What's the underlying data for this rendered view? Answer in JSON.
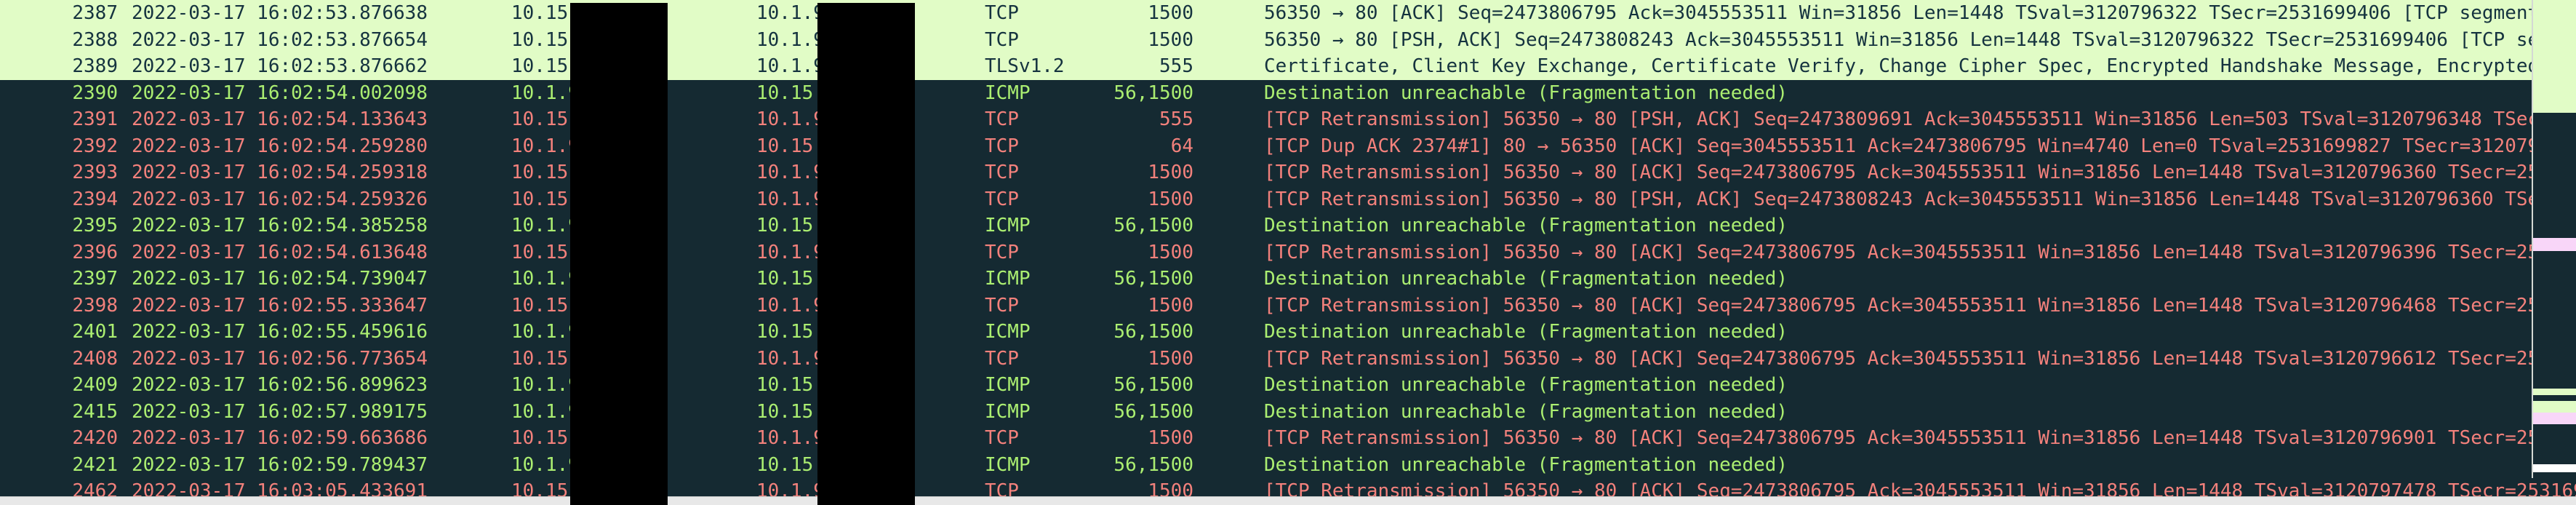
{
  "app": "wireshark-packet-list",
  "columns": [
    "No.",
    "Time",
    "Source",
    "Destination",
    "Protocol",
    "Length",
    "Info"
  ],
  "colors": {
    "row_http_bg": "#e1fcc6",
    "row_http_text": "#15333f",
    "dark_bg": "#152a32",
    "icmp_text": "#abee71",
    "bad_tcp_text": "#f3817c",
    "minimap_pink": "#f8d6f8",
    "minimap_white": "#ffffff",
    "hscrollbar_bg": "#e8e8e8",
    "redaction": "#000000"
  },
  "rows": [
    {
      "no": "2387",
      "time": "2022-03-17 16:02:53.876638",
      "source": "10.15",
      "destination": "10.1.9",
      "protocol": "TCP",
      "length": "1500",
      "info": "56350 → 80 [ACK] Seq=2473806795 Ack=3045553511 Win=31856 Len=1448 TSval=3120796322 TSecr=2531699406 [TCP segment",
      "style": "http"
    },
    {
      "no": "2388",
      "time": "2022-03-17 16:02:53.876654",
      "source": "10.15",
      "destination": "10.1.9",
      "protocol": "TCP",
      "length": "1500",
      "info": "56350 → 80 [PSH, ACK] Seq=2473808243 Ack=3045553511 Win=31856 Len=1448 TSval=3120796322 TSecr=2531699406 [TCP se",
      "style": "http"
    },
    {
      "no": "2389",
      "time": "2022-03-17 16:02:53.876662",
      "source": "10.15",
      "destination": "10.1.9",
      "protocol": "TLSv1.2",
      "length": "555",
      "info": "Certificate, Client Key Exchange, Certificate Verify, Change Cipher Spec, Encrypted Handshake Message, Encrypted",
      "style": "http"
    },
    {
      "no": "2390",
      "time": "2022-03-17 16:02:54.002098",
      "source": "10.1.9",
      "destination": "10.15",
      "protocol": "ICMP",
      "length": "56,1500",
      "info": "Destination unreachable (Fragmentation needed)",
      "style": "icmp"
    },
    {
      "no": "2391",
      "time": "2022-03-17 16:02:54.133643",
      "source": "10.15",
      "destination": "10.1.9",
      "protocol": "TCP",
      "length": "555",
      "info": "[TCP Retransmission] 56350 → 80 [PSH, ACK] Seq=2473809691 Ack=3045553511 Win=31856 Len=503 TSval=3120796348 TSec",
      "style": "bad"
    },
    {
      "no": "2392",
      "time": "2022-03-17 16:02:54.259280",
      "source": "10.1.9",
      "destination": "10.15",
      "protocol": "TCP",
      "length": "64",
      "info": "[TCP Dup ACK 2374#1] 80 → 56350 [ACK] Seq=3045553511 Ack=2473806795 Win=4740 Len=0 TSval=2531699827 TSecr=312079",
      "style": "bad"
    },
    {
      "no": "2393",
      "time": "2022-03-17 16:02:54.259318",
      "source": "10.15",
      "destination": "10.1.9",
      "protocol": "TCP",
      "length": "1500",
      "info": "[TCP Retransmission] 56350 → 80 [ACK] Seq=2473806795 Ack=3045553511 Win=31856 Len=1448 TSval=3120796360 TSecr=25",
      "style": "bad"
    },
    {
      "no": "2394",
      "time": "2022-03-17 16:02:54.259326",
      "source": "10.15",
      "destination": "10.1.9",
      "protocol": "TCP",
      "length": "1500",
      "info": "[TCP Retransmission] 56350 → 80 [PSH, ACK] Seq=2473808243 Ack=3045553511 Win=31856 Len=1448 TSval=3120796360 TSe",
      "style": "bad"
    },
    {
      "no": "2395",
      "time": "2022-03-17 16:02:54.385258",
      "source": "10.1.9",
      "destination": "10.15",
      "protocol": "ICMP",
      "length": "56,1500",
      "info": "Destination unreachable (Fragmentation needed)",
      "style": "icmp"
    },
    {
      "no": "2396",
      "time": "2022-03-17 16:02:54.613648",
      "source": "10.15",
      "destination": "10.1.9",
      "protocol": "TCP",
      "length": "1500",
      "info": "[TCP Retransmission] 56350 → 80 [ACK] Seq=2473806795 Ack=3045553511 Win=31856 Len=1448 TSval=3120796396 TSecr=25",
      "style": "bad"
    },
    {
      "no": "2397",
      "time": "2022-03-17 16:02:54.739047",
      "source": "10.1.9",
      "destination": "10.15",
      "protocol": "ICMP",
      "length": "56,1500",
      "info": "Destination unreachable (Fragmentation needed)",
      "style": "icmp"
    },
    {
      "no": "2398",
      "time": "2022-03-17 16:02:55.333647",
      "source": "10.15",
      "destination": "10.1.9",
      "protocol": "TCP",
      "length": "1500",
      "info": "[TCP Retransmission] 56350 → 80 [ACK] Seq=2473806795 Ack=3045553511 Win=31856 Len=1448 TSval=3120796468 TSecr=25",
      "style": "bad"
    },
    {
      "no": "2401",
      "time": "2022-03-17 16:02:55.459616",
      "source": "10.1.9",
      "destination": "10.15",
      "protocol": "ICMP",
      "length": "56,1500",
      "info": "Destination unreachable (Fragmentation needed)",
      "style": "icmp"
    },
    {
      "no": "2408",
      "time": "2022-03-17 16:02:56.773654",
      "source": "10.15",
      "destination": "10.1.9",
      "protocol": "TCP",
      "length": "1500",
      "info": "[TCP Retransmission] 56350 → 80 [ACK] Seq=2473806795 Ack=3045553511 Win=31856 Len=1448 TSval=3120796612 TSecr=25",
      "style": "bad"
    },
    {
      "no": "2409",
      "time": "2022-03-17 16:02:56.899623",
      "source": "10.1.9",
      "destination": "10.15",
      "protocol": "ICMP",
      "length": "56,1500",
      "info": "Destination unreachable (Fragmentation needed)",
      "style": "icmp"
    },
    {
      "no": "2415",
      "time": "2022-03-17 16:02:57.989175",
      "source": "10.1.9",
      "destination": "10.15",
      "protocol": "ICMP",
      "length": "56,1500",
      "info": "Destination unreachable (Fragmentation needed)",
      "style": "icmp"
    },
    {
      "no": "2420",
      "time": "2022-03-17 16:02:59.663686",
      "source": "10.15",
      "destination": "10.1.9",
      "protocol": "TCP",
      "length": "1500",
      "info": "[TCP Retransmission] 56350 → 80 [ACK] Seq=2473806795 Ack=3045553511 Win=31856 Len=1448 TSval=3120796901 TSecr=25",
      "style": "bad"
    },
    {
      "no": "2421",
      "time": "2022-03-17 16:02:59.789437",
      "source": "10.1.9",
      "destination": "10.15",
      "protocol": "ICMP",
      "length": "56,1500",
      "info": "Destination unreachable (Fragmentation needed)",
      "style": "icmp"
    },
    {
      "no": "2462",
      "time": "2022-03-17 16:03:05.433691",
      "source": "10.15",
      "destination": "10.1.9",
      "protocol": "TCP",
      "length": "1500",
      "info": "[TCP Retransmission] 56350 → 80 [ACK] Seq=2473806795 Ack=3045553511 Win=31856 Len=1448 TSval=3120797478 TSecr=253169",
      "style": "bad"
    }
  ],
  "minimap_stripes": [
    {
      "from": 0,
      "to": 155,
      "color": "#e1fcc6"
    },
    {
      "from": 155,
      "to": 327,
      "color": "#152a32"
    },
    {
      "from": 327,
      "to": 345,
      "color": "#f8d6f8"
    },
    {
      "from": 345,
      "to": 534,
      "color": "#152a32"
    },
    {
      "from": 534,
      "to": 543,
      "color": "#e1fcc6"
    },
    {
      "from": 543,
      "to": 551,
      "color": "#152a32"
    },
    {
      "from": 551,
      "to": 567,
      "color": "#e1fcc6"
    },
    {
      "from": 567,
      "to": 583,
      "color": "#f8d6f8"
    },
    {
      "from": 583,
      "to": 638,
      "color": "#152a32"
    },
    {
      "from": 638,
      "to": 649,
      "color": "#ffffff"
    },
    {
      "from": 649,
      "to": 657,
      "color": "#152a32"
    }
  ]
}
